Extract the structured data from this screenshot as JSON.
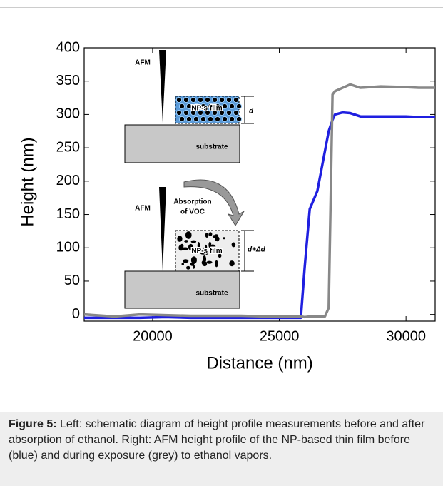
{
  "chart_data": {
    "type": "line",
    "xlabel": "Distance (nm)",
    "ylabel": "Height (nm)",
    "x": [
      17300,
      18500,
      19500,
      20500,
      21500,
      22500,
      23500,
      24500,
      25500,
      25850,
      26000,
      26200,
      26500,
      26800,
      26950,
      27100,
      27200,
      27500,
      27800,
      28200,
      29000,
      30000,
      30500,
      31150
    ],
    "series": [
      {
        "color": "#1f1fe0",
        "values": [
          -5,
          -5,
          -5,
          -4,
          -5,
          -5,
          -5,
          -5,
          -5,
          -5,
          70,
          158,
          185,
          245,
          275,
          292,
          300,
          303,
          302,
          297,
          297,
          297,
          296,
          296
        ]
      },
      {
        "color": "#888888",
        "values": [
          0,
          -3,
          0,
          -1,
          -2,
          -2,
          -2,
          -3,
          -3,
          -3,
          -4,
          -3,
          -3,
          -3,
          10,
          330,
          335,
          340,
          345,
          340,
          342,
          341,
          340,
          340
        ]
      }
    ],
    "xlim": [
      17300,
      31150
    ],
    "ylim": [
      -10,
      400
    ],
    "xticks": [
      20000,
      25000,
      30000
    ],
    "yticks": [
      0,
      50,
      100,
      150,
      200,
      250,
      300,
      350,
      400
    ],
    "annotations": {
      "afm_top": "AFM",
      "film_top": "NP-s film",
      "d": "d",
      "substrate_top": "substrate",
      "absorption": [
        "Absorption",
        "of VOC"
      ],
      "afm_bottom": "AFM",
      "film_bottom": "NP-s film",
      "d_delta": "d+Δd",
      "substrate_bottom": "substrate"
    }
  },
  "caption": {
    "label": "Figure 5:",
    "text": "Left: schematic diagram of height profile measurements before and after absorption of ethanol. Right: AFM height profile of the NP-based thin film before (blue) and during exposure (grey) to ethanol vapors."
  }
}
